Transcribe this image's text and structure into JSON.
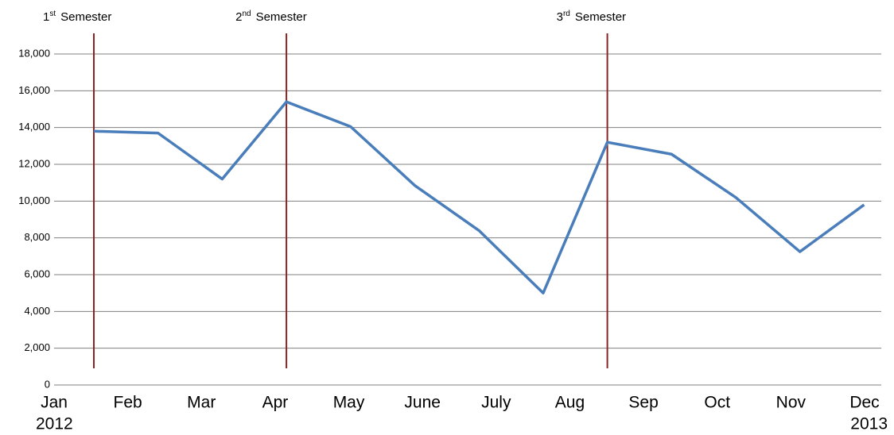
{
  "chart_data": {
    "type": "line",
    "x_labels": [
      "Jan",
      "Feb",
      "Mar",
      "Apr",
      "May",
      "June",
      "July",
      "Aug",
      "Sep",
      "Oct",
      "Nov",
      "Dec"
    ],
    "year_labels": [
      "2012",
      "2013"
    ],
    "series": [
      {
        "color": "#4a7ebb",
        "values": [
          13800,
          13700,
          11200,
          15400,
          14050,
          10850,
          8400,
          5000,
          13200,
          12550,
          10200,
          7250,
          9800
        ]
      }
    ],
    "ylim": [
      0,
      18000
    ],
    "yticks": [
      0,
      {
        "value": 2000,
        "label": "2,000"
      },
      {
        "value": 4000,
        "label": "4,000"
      },
      {
        "value": 6000,
        "label": "6,000"
      },
      {
        "value": 8000,
        "label": "8,000"
      },
      {
        "value": 10000,
        "label": "10,000"
      },
      {
        "value": 12000,
        "label": "12,000"
      },
      {
        "value": 14000,
        "label": "14,000"
      },
      {
        "value": 16000,
        "label": "16,000"
      },
      {
        "value": 18000,
        "label": "18,000"
      }
    ],
    "grid": true,
    "annotations": [
      {
        "x": 0,
        "num": "1",
        "sup": "st",
        "text": "Semester",
        "color": "#8b2323"
      },
      {
        "x": 3,
        "num": "2",
        "sup": "nd",
        "text": "Semester",
        "color": "#8b2323"
      },
      {
        "x": 8,
        "num": "3",
        "sup": "rd",
        "text": "Semester",
        "color": "#8b2323"
      }
    ]
  }
}
